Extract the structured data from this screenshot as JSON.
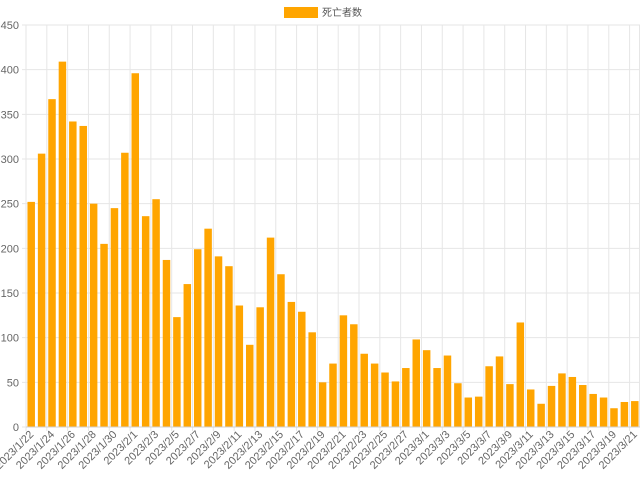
{
  "chart_data": {
    "type": "bar",
    "title": "",
    "xlabel": "",
    "ylabel": "",
    "ylim": [
      0,
      450
    ],
    "yticks": [
      0,
      50,
      100,
      150,
      200,
      250,
      300,
      350,
      400,
      450
    ],
    "grid": true,
    "legend_position": "top-center",
    "bar_color": "#FFA500",
    "grid_color": "#e6e6e6",
    "categories": [
      "2023/1/22",
      "2023/1/23",
      "2023/1/24",
      "2023/1/25",
      "2023/1/26",
      "2023/1/27",
      "2023/1/28",
      "2023/1/29",
      "2023/1/30",
      "2023/1/31",
      "2023/2/1",
      "2023/2/2",
      "2023/2/3",
      "2023/2/4",
      "2023/2/5",
      "2023/2/6",
      "2023/2/7",
      "2023/2/8",
      "2023/2/9",
      "2023/2/10",
      "2023/2/11",
      "2023/2/12",
      "2023/2/13",
      "2023/2/14",
      "2023/2/15",
      "2023/2/16",
      "2023/2/17",
      "2023/2/18",
      "2023/2/19",
      "2023/2/20",
      "2023/2/21",
      "2023/2/22",
      "2023/2/23",
      "2023/2/24",
      "2023/2/25",
      "2023/2/26",
      "2023/2/27",
      "2023/2/28",
      "2023/3/1",
      "2023/3/2",
      "2023/3/3",
      "2023/3/4",
      "2023/3/5",
      "2023/3/6",
      "2023/3/7",
      "2023/3/8",
      "2023/3/9",
      "2023/3/10",
      "2023/3/11",
      "2023/3/12",
      "2023/3/13",
      "2023/3/14",
      "2023/3/15",
      "2023/3/16",
      "2023/3/17",
      "2023/3/18",
      "2023/3/19",
      "2023/3/20",
      "2023/3/21"
    ],
    "xtick_labels": [
      "2023/1/22",
      "2023/1/24",
      "2023/1/26",
      "2023/1/28",
      "2023/1/30",
      "2023/2/1",
      "2023/2/3",
      "2023/2/5",
      "2023/2/7",
      "2023/2/9",
      "2023/2/11",
      "2023/2/13",
      "2023/2/15",
      "2023/2/17",
      "2023/2/19",
      "2023/2/21",
      "2023/2/23",
      "2023/2/25",
      "2023/2/27",
      "2023/3/1",
      "2023/3/3",
      "2023/3/5",
      "2023/3/7",
      "2023/3/9",
      "2023/3/11",
      "2023/3/13",
      "2023/3/15",
      "2023/3/17",
      "2023/3/19",
      "2023/3/21"
    ],
    "series": [
      {
        "name": "死亡者数",
        "values": [
          252,
          306,
          367,
          409,
          342,
          337,
          250,
          205,
          245,
          307,
          396,
          236,
          255,
          187,
          123,
          160,
          199,
          222,
          191,
          180,
          136,
          92,
          134,
          212,
          171,
          140,
          129,
          106,
          50,
          71,
          125,
          115,
          82,
          71,
          61,
          51,
          66,
          98,
          86,
          66,
          80,
          49,
          33,
          34,
          68,
          79,
          48,
          117,
          42,
          26,
          46,
          60,
          56,
          47,
          37,
          33,
          21,
          28,
          29
        ]
      }
    ]
  }
}
